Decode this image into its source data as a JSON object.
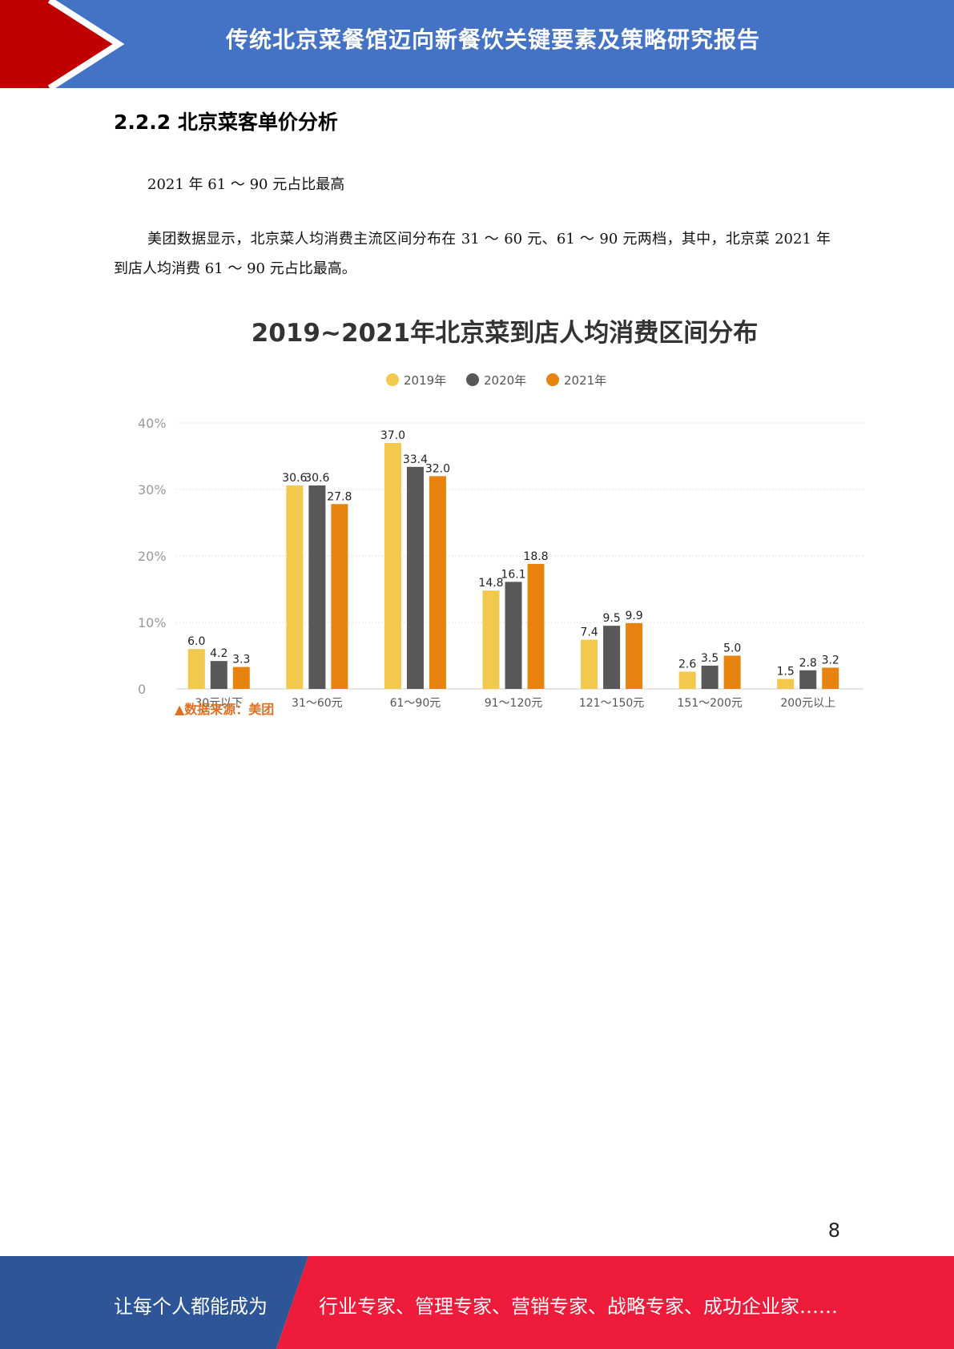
{
  "header": {
    "title": "传统北京菜餐馆迈向新餐饮关键要素及策略研究报告",
    "colors": {
      "band": "#4472c4",
      "chevron": "#c00000"
    }
  },
  "section": {
    "heading": "2.2.2 北京菜客单价分析"
  },
  "paragraphs": {
    "p1": "2021 年 61 ～ 90 元占比最高",
    "p2": "美团数据显示，北京菜人均消费主流区间分布在 31 ～ 60 元、61 ～ 90 元两档，其中，北京菜 2021 年到店人均消费 61 ～ 90 元占比最高。"
  },
  "chart_data": {
    "type": "bar",
    "title": "2019~2021年北京菜到店人均消费区间分布",
    "categories": [
      "30元以下",
      "31～60元",
      "61～90元",
      "91～120元",
      "121～150元",
      "151～200元",
      "200元以上"
    ],
    "series": [
      {
        "name": "2019年",
        "color": "#f2c94c",
        "values": [
          6.0,
          30.6,
          37.0,
          14.8,
          7.4,
          2.6,
          1.5
        ]
      },
      {
        "name": "2020年",
        "color": "#595757",
        "values": [
          4.2,
          30.6,
          33.4,
          16.1,
          9.5,
          3.5,
          2.8
        ]
      },
      {
        "name": "2021年",
        "color": "#e8830f",
        "values": [
          3.3,
          27.8,
          32.0,
          18.8,
          9.9,
          5.0,
          3.2
        ]
      }
    ],
    "y_ticks": [
      "0",
      "10%",
      "20%",
      "30%",
      "40%"
    ],
    "ylim": [
      0,
      40
    ],
    "legend_position": "top-center",
    "grid": true,
    "source": "▲数据来源：美团"
  },
  "page": {
    "number": "8"
  },
  "footer": {
    "left": "让每个人都能成为",
    "right": "行业专家、管理专家、营销专家、战略专家、成功企业家……",
    "colors": {
      "left": "#2e5597",
      "right": "#ee1c3a"
    }
  }
}
